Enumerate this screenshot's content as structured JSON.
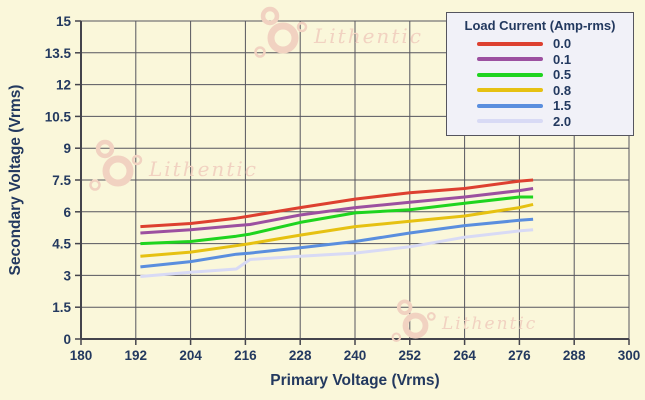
{
  "watermark": {
    "text": "Lithentic"
  },
  "colors": {
    "background": "#faf7da",
    "grid": "#56565e",
    "axis": "#44444c",
    "text": "#23395f",
    "legend_bg": "#f1f1f8",
    "legend_border": "#55555f",
    "watermark": "#f1d2c1"
  },
  "chart_data": {
    "type": "line",
    "title": "",
    "xlabel": "Primary Voltage (Vrms)",
    "ylabel": "Secondary Voltage (Vrms)",
    "xlim": [
      180,
      300
    ],
    "ylim": [
      0,
      15
    ],
    "xticks": [
      180,
      192,
      204,
      216,
      228,
      240,
      252,
      264,
      276,
      288,
      300
    ],
    "yticks": [
      0,
      1.5,
      3,
      4.5,
      6,
      7.5,
      9,
      10.5,
      12,
      13.5,
      15
    ],
    "grid": true,
    "legend": {
      "title": "Load Current (Amp-rms)",
      "position": "top-right"
    },
    "x": [
      193,
      204,
      214,
      217,
      228,
      240,
      252,
      264,
      276,
      279
    ],
    "series": [
      {
        "name": "0.0",
        "color": "#dd4030",
        "values": [
          5.3,
          5.45,
          5.7,
          5.8,
          6.2,
          6.6,
          6.9,
          7.1,
          7.45,
          7.5
        ]
      },
      {
        "name": "0.1",
        "color": "#9c50a0",
        "values": [
          5.0,
          5.15,
          5.35,
          5.4,
          5.85,
          6.2,
          6.45,
          6.7,
          7.0,
          7.1
        ]
      },
      {
        "name": "0.5",
        "color": "#1fd41f",
        "values": [
          4.5,
          4.6,
          4.85,
          4.95,
          5.5,
          5.95,
          6.1,
          6.4,
          6.7,
          6.7
        ]
      },
      {
        "name": "0.8",
        "color": "#e6c112",
        "values": [
          3.9,
          4.1,
          4.4,
          4.5,
          4.9,
          5.3,
          5.55,
          5.8,
          6.2,
          6.35
        ]
      },
      {
        "name": "1.5",
        "color": "#5a8ede",
        "values": [
          3.4,
          3.65,
          4.0,
          4.05,
          4.3,
          4.6,
          5.0,
          5.35,
          5.6,
          5.65
        ]
      },
      {
        "name": "2.0",
        "color": "#d8daf5",
        "values": [
          2.95,
          3.15,
          3.3,
          3.75,
          3.9,
          4.05,
          4.35,
          4.8,
          5.1,
          5.15
        ]
      }
    ]
  }
}
